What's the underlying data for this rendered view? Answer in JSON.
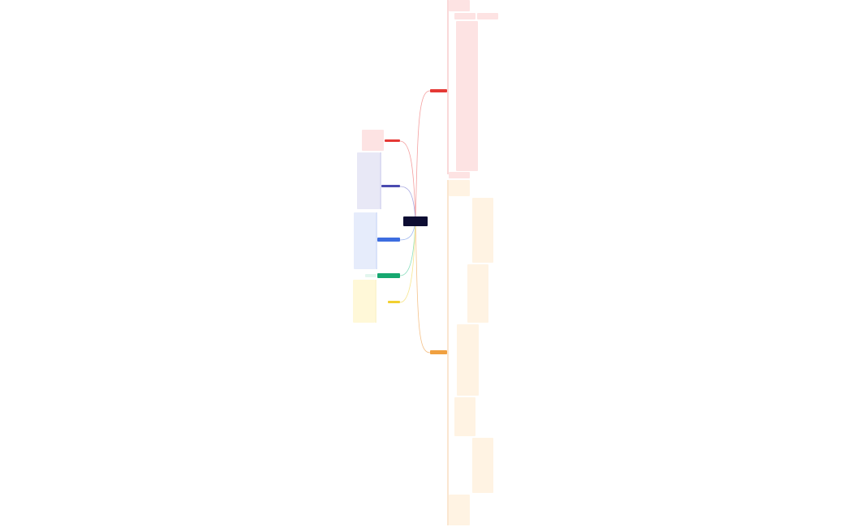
{
  "center": {
    "label": "",
    "color": "#0d0d33"
  },
  "branches": [
    {
      "id": "right-red",
      "label": "",
      "color": "#e53935",
      "leaf_bg": "#fde3e3"
    },
    {
      "id": "right-orange",
      "label": "",
      "color": "#f0a040",
      "leaf_bg": "#fff3e3"
    },
    {
      "id": "left-red",
      "label": "",
      "color": "#e53935",
      "leaf_bg": "#fde3e3"
    },
    {
      "id": "left-purple",
      "label": "",
      "color": "#4b4bb0",
      "leaf_bg": "#e8e8f6"
    },
    {
      "id": "left-blue",
      "label": "",
      "color": "#3d6de0",
      "leaf_bg": "#e6ecfb"
    },
    {
      "id": "left-green",
      "label": "",
      "color": "#16a870",
      "leaf_bg": "#e3f6ee"
    },
    {
      "id": "left-yellow",
      "label": "",
      "color": "#f2d030",
      "leaf_bg": "#fff8d8"
    }
  ]
}
